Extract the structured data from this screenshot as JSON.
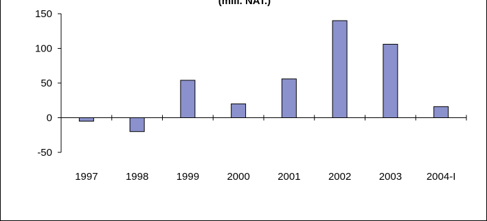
{
  "chart_data": {
    "type": "bar",
    "title": "(mill. NAT.)",
    "xlabel": "",
    "ylabel": "",
    "categories": [
      "1997",
      "1998",
      "1999",
      "2000",
      "2001",
      "2002",
      "2003",
      "2004-I"
    ],
    "series": [
      {
        "values": [
          -5,
          -20,
          54,
          20,
          56,
          140,
          106,
          16
        ]
      }
    ],
    "ylim": [
      -50,
      150
    ],
    "yticks": [
      -50,
      0,
      50,
      100,
      150
    ],
    "ytick_labels": [
      "-50",
      "0",
      "50",
      "100",
      "150"
    ],
    "grid": false,
    "bar_color": "#8a91cc",
    "bar_edge_color": "#000000"
  }
}
